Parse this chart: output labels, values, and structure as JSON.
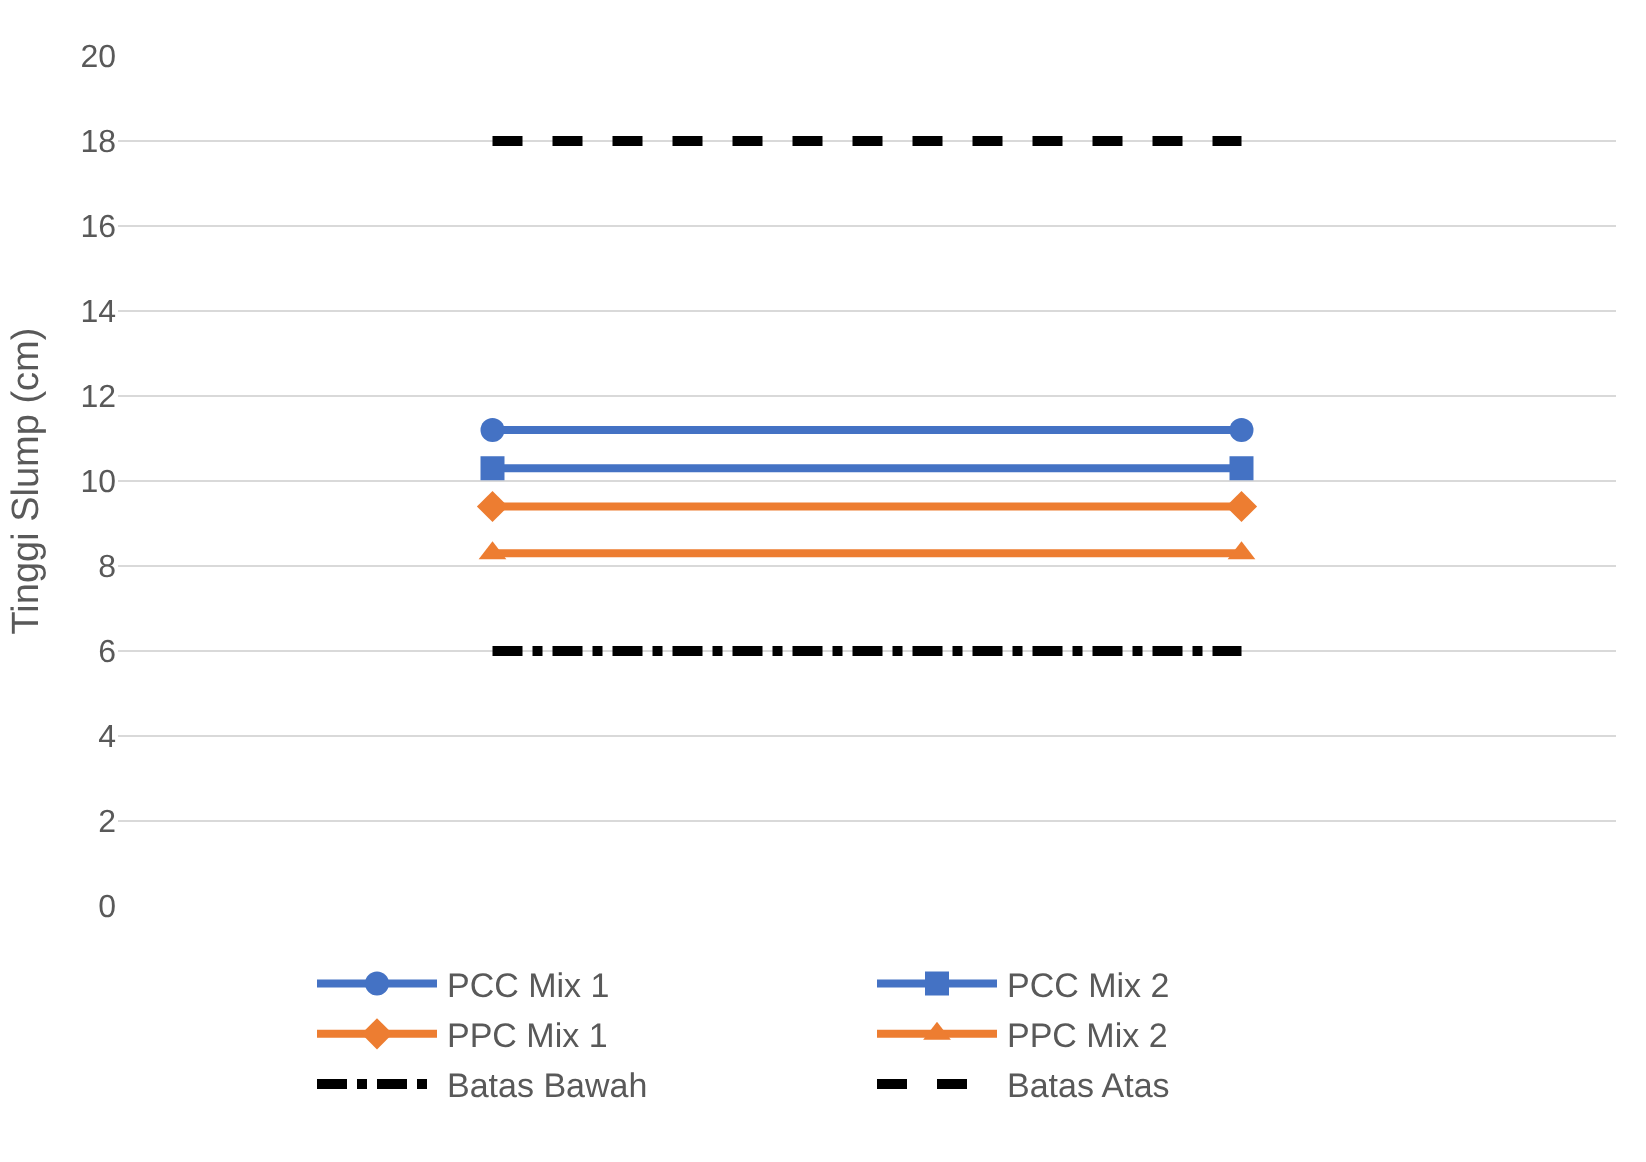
{
  "chart_data": {
    "type": "line",
    "ylabel": "Tinggi Slump (cm)",
    "categories": [
      null,
      null
    ],
    "ylim": [
      0,
      20
    ],
    "yticks": [
      0,
      2,
      4,
      6,
      8,
      10,
      12,
      14,
      16,
      18,
      20
    ],
    "grid": "y",
    "legend": "bottom",
    "tick_labels": "y",
    "series": [
      {
        "name": "PCC Mix 1",
        "color": "#4472c4",
        "values": [
          11.2,
          11.2
        ],
        "marker": "circle",
        "line_style": "solid"
      },
      {
        "name": "PCC Mix 2",
        "color": "#4472c4",
        "values": [
          10.3,
          10.3
        ],
        "marker": "square",
        "line_style": "solid"
      },
      {
        "name": "PPC Mix 1",
        "color": "#ed7d31",
        "values": [
          9.4,
          9.4
        ],
        "marker": "diamond",
        "line_style": "solid"
      },
      {
        "name": "PPC Mix 2",
        "color": "#ed7d31",
        "values": [
          8.3,
          8.3
        ],
        "marker": "triangle",
        "line_style": "solid"
      },
      {
        "name": "Batas Bawah",
        "color": "#000000",
        "values": [
          6,
          6
        ],
        "marker": "none",
        "line_style": "dashdot"
      },
      {
        "name": "Batas Atas",
        "color": "#000000",
        "values": [
          18,
          18
        ],
        "marker": "none",
        "line_style": "dashed"
      }
    ]
  }
}
